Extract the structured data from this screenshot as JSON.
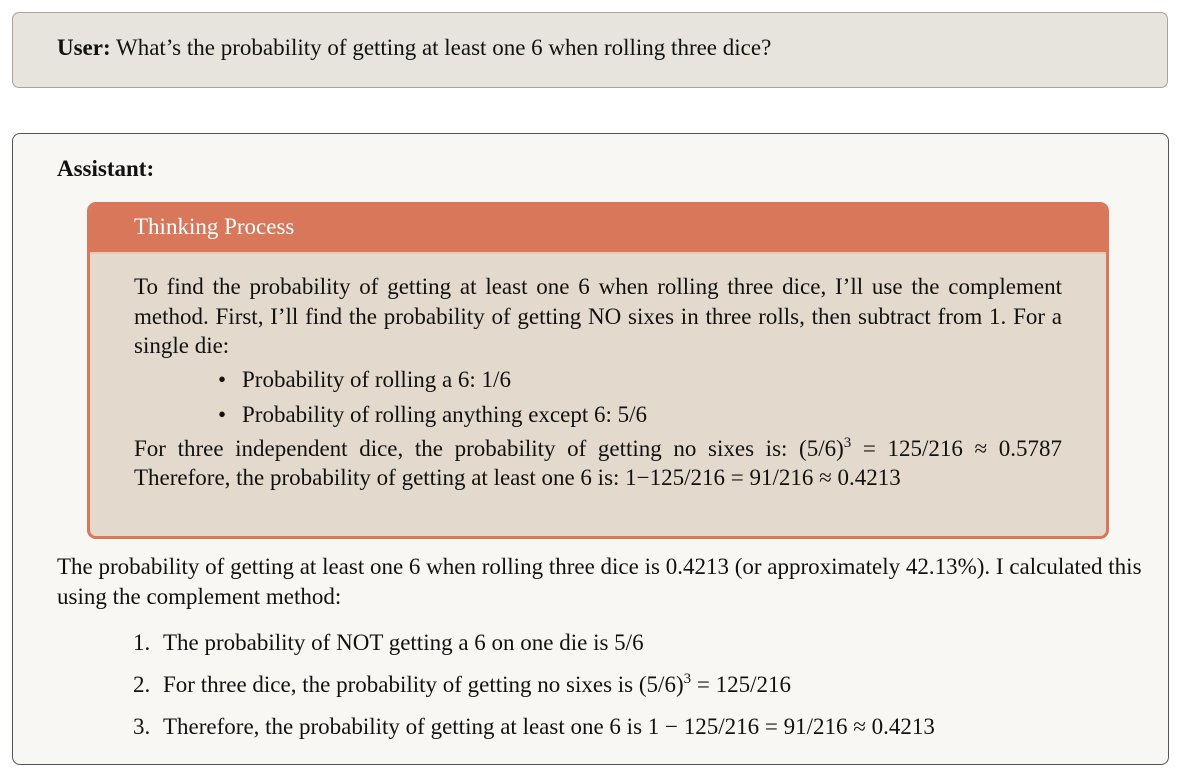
{
  "user": {
    "label": "User:",
    "message": "What’s the probability of getting at least one 6 when rolling three dice?"
  },
  "assistant": {
    "label": "Assistant:",
    "thinking": {
      "title": "Thinking Process",
      "intro": "To find the probability of getting at least one 6 when rolling three dice, I’ll use the complement method. First, I’ll find the probability of getting NO sixes in three rolls, then subtract from 1. For a single die:",
      "bullets": [
        "Probability of rolling a 6: 1/6",
        "Probability of rolling anything except 6: 5/6"
      ],
      "p2_text": "For three independent dice, the probability of getting no sixes is: ",
      "p2_math_base": "(5/6)",
      "p2_math_exp": "3",
      "p2_math_rest": " = 125/216 ≈ 0.5787",
      "p2_text2": " Therefore, the probability of getting at least one 6 is: ",
      "p2_math2": "1−125/216 = 91/216 ≈ 0.4213"
    },
    "response": {
      "summary": "The probability of getting at least one 6 when rolling three dice is 0.4213 (or approximately 42.13%). I calculated this using the complement method:",
      "steps": [
        {
          "num": "1.",
          "text": "The probability of NOT getting a 6 on one die is 5/6"
        },
        {
          "num": "2.",
          "text": "For three dice, the probability of getting no sixes is ",
          "math_base": "(5/6)",
          "math_exp": "3",
          "math_rest": " = 125/216"
        },
        {
          "num": "3.",
          "text": "Therefore, the probability of getting at least one 6 is 1 − 125/216 = 91/216 ≈ 0.4213"
        }
      ]
    }
  },
  "colors": {
    "thinking_accent": "#d9775b",
    "thinking_bg": "#e3d9cd",
    "user_bg": "#e6e4dc",
    "assistant_bg": "#f8f7f3"
  }
}
